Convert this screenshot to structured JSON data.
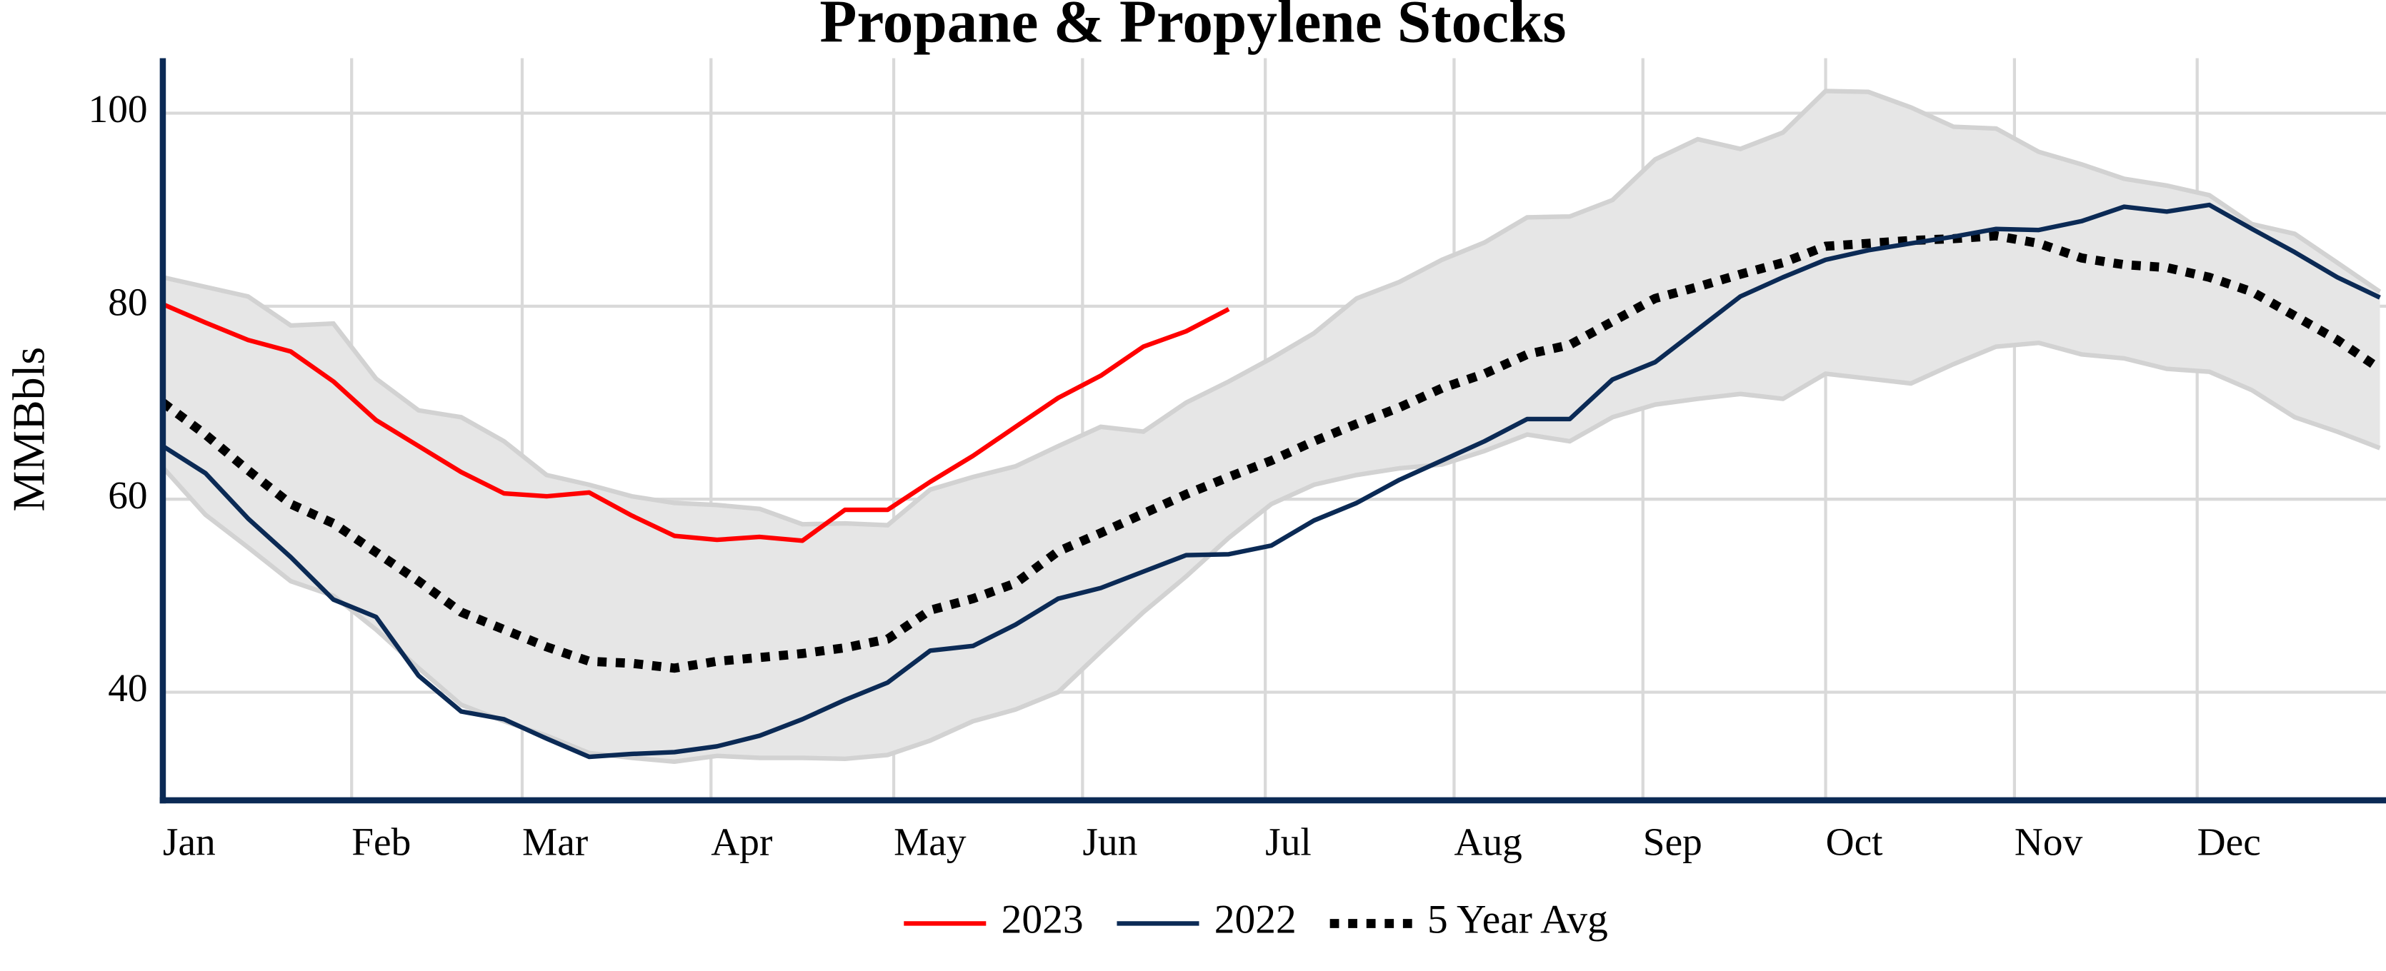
{
  "chart_data": {
    "type": "line",
    "title": "Propane & Propylene Stocks",
    "y_label": "MMBbls",
    "x": [
      0,
      7,
      14,
      21,
      28,
      35,
      42,
      49,
      56,
      63,
      70,
      77,
      84,
      91,
      98,
      105,
      112,
      119,
      126,
      133,
      140,
      147,
      154,
      161,
      168,
      175,
      182,
      189,
      196,
      203,
      210,
      217,
      224,
      231,
      238,
      245,
      252,
      259,
      266,
      273,
      280,
      287,
      294,
      301,
      308,
      315,
      322,
      329,
      336,
      343,
      350,
      357,
      364
    ],
    "xlim": [
      0,
      365
    ],
    "xticks": [
      {
        "value": 0,
        "label": "Jan"
      },
      {
        "value": 31,
        "label": "Feb"
      },
      {
        "value": 59,
        "label": "Mar"
      },
      {
        "value": 90,
        "label": "Apr"
      },
      {
        "value": 120,
        "label": "May"
      },
      {
        "value": 151,
        "label": "Jun"
      },
      {
        "value": 181,
        "label": "Jul"
      },
      {
        "value": 212,
        "label": "Aug"
      },
      {
        "value": 243,
        "label": "Sep"
      },
      {
        "value": 273,
        "label": "Oct"
      },
      {
        "value": 304,
        "label": "Nov"
      },
      {
        "value": 334,
        "label": "Dec"
      }
    ],
    "ylim": [
      28.8,
      105.7
    ],
    "yticks": [
      40,
      60,
      80,
      100
    ],
    "grid": true,
    "legend": "bottom",
    "range": {
      "color": "#e6e6e6",
      "edge_color": "#d2d2d2",
      "upper": [
        83,
        82,
        81,
        78,
        78.2,
        72.5,
        69.2,
        68.5,
        66,
        62.5,
        61.5,
        60.3,
        59.6,
        59.4,
        59,
        57.4,
        57.5,
        57.3,
        61,
        62.3,
        63.4,
        65.5,
        67.5,
        67,
        70,
        72.2,
        74.6,
        77.2,
        80.8,
        82.5,
        84.8,
        86.6,
        89.2,
        89.3,
        91,
        95.2,
        97.3,
        96.3,
        98,
        102.3,
        102.2,
        100.6,
        98.6,
        98.4,
        96,
        94.7,
        93.2,
        92.5,
        91.5,
        88.5,
        87.5,
        84.5,
        81.5
      ],
      "lower": [
        63.3,
        58.4,
        55,
        51.5,
        50,
        46.5,
        42.5,
        38.7,
        37,
        35.5,
        33.7,
        33.2,
        32.8,
        33.4,
        33.2,
        33.2,
        33.1,
        33.5,
        35,
        37,
        38.2,
        40,
        44.2,
        48.3,
        52,
        56,
        59.5,
        61.5,
        62.5,
        63.2,
        63.6,
        65,
        66.7,
        66,
        68.5,
        69.8,
        70.4,
        70.9,
        70.4,
        73,
        72.5,
        72,
        74,
        75.8,
        76.2,
        75,
        74.6,
        73.5,
        73.2,
        71.3,
        68.5,
        67,
        65.3
      ]
    },
    "series": [
      {
        "name": "2023",
        "color": "#ff0000",
        "style": "solid",
        "values": [
          80.2,
          78.3,
          76.5,
          75.3,
          72.2,
          68.2,
          65.5,
          62.8,
          60.6,
          60.3,
          60.7,
          58.3,
          56.2,
          55.8,
          56.1,
          55.7,
          58.9,
          58.9,
          61.8,
          64.5,
          67.5,
          70.5,
          72.8,
          75.8,
          77.4,
          79.7,
          null,
          null,
          null,
          null,
          null,
          null,
          null,
          null,
          null,
          null,
          null,
          null,
          null,
          null,
          null,
          null,
          null,
          null,
          null,
          null,
          null,
          null,
          null,
          null,
          null,
          null,
          null
        ]
      },
      {
        "name": "2022",
        "color": "#0b2a55",
        "style": "solid",
        "values": [
          65.5,
          62.7,
          58,
          54,
          49.6,
          47.8,
          41.7,
          38,
          37.2,
          35.2,
          33.3,
          33.6,
          33.8,
          34.4,
          35.5,
          37.2,
          39.2,
          41,
          44.3,
          44.8,
          47,
          49.7,
          50.8,
          52.5,
          54.2,
          54.3,
          55.2,
          57.8,
          59.6,
          62,
          64,
          66,
          68.3,
          68.3,
          72.4,
          74.2,
          77.6,
          81,
          83,
          84.8,
          85.8,
          86.5,
          87.2,
          88,
          87.9,
          88.8,
          90.3,
          89.8,
          90.5,
          88,
          85.6,
          83,
          80.9
        ]
      },
      {
        "name": "5 Year Avg",
        "color": "#000000",
        "style": "dotted",
        "values": [
          70,
          66.7,
          63,
          59.5,
          57.5,
          54.5,
          51.5,
          48.3,
          46.5,
          44.7,
          43.2,
          43,
          42.5,
          43.2,
          43.6,
          44,
          44.6,
          45.5,
          48.5,
          49.7,
          51.3,
          54.6,
          56.5,
          58.5,
          60.5,
          62.3,
          64,
          66,
          67.8,
          69.5,
          71.5,
          73,
          75,
          76,
          78.4,
          80.8,
          82,
          83.3,
          84.5,
          86.2,
          86.5,
          86.8,
          87,
          87.3,
          86.5,
          85,
          84.3,
          84,
          83,
          81.5,
          79,
          76.5,
          73.5
        ]
      }
    ]
  }
}
